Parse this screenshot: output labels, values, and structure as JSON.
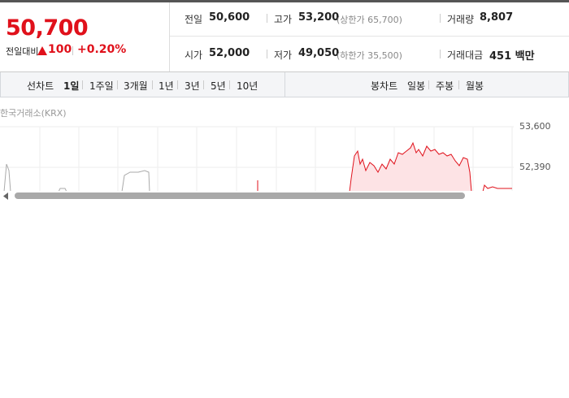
{
  "header": {
    "price": "50,700",
    "change_label": "전일대비",
    "change": "100",
    "change_rate": "+0.20%"
  },
  "stats": [
    [
      {
        "label": "전일",
        "value": "50,600"
      },
      {
        "label": "고가",
        "value": "53,200",
        "note": "(상한가 65,700)"
      },
      {
        "label": "거래량",
        "value": "8,807"
      }
    ],
    [
      {
        "label": "시가",
        "value": "52,000"
      },
      {
        "label": "저가",
        "value": "49,050",
        "note": "(하한가 35,500)"
      },
      {
        "label": "거래대금",
        "value": "451 백만"
      }
    ]
  ],
  "tabs": {
    "line_chart": {
      "label": "선차트",
      "options": [
        "1일",
        "1주일",
        "3개월",
        "1년",
        "3년",
        "5년",
        "10년"
      ]
    },
    "candle_chart": {
      "label": "봉차트",
      "options": [
        "일봉",
        "주봉",
        "월봉"
      ]
    }
  },
  "chart": {
    "source": "한국거래소(KRX)",
    "price_labels": [
      "53,600",
      "52,390"
    ]
  }
}
